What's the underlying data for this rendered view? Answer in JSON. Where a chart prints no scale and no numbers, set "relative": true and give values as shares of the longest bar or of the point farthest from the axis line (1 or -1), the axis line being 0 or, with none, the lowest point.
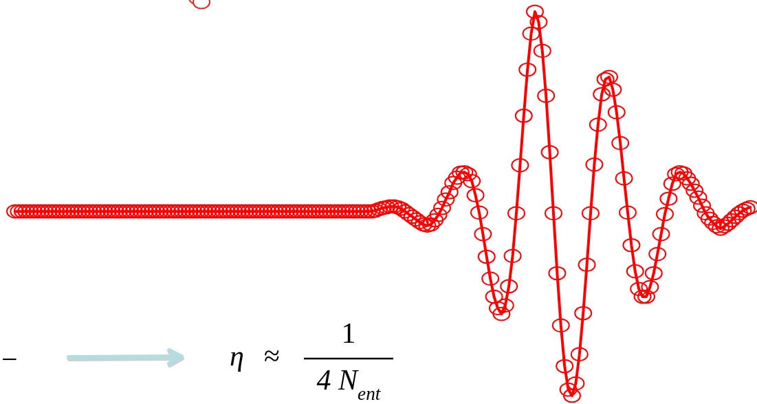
{
  "chart_data": {
    "type": "line",
    "relative": true,
    "marker": "circle",
    "line_style": "solid",
    "categories": [
      null,
      null,
      null,
      null,
      null,
      null,
      null,
      null,
      null,
      null,
      null,
      null,
      null,
      null,
      null,
      null,
      null,
      null,
      null,
      null,
      null,
      null,
      null,
      null,
      null,
      null,
      null,
      null,
      null,
      null,
      null,
      null,
      null,
      null,
      null,
      null,
      null,
      null,
      null,
      null,
      null,
      null,
      null,
      null,
      null,
      null,
      null,
      null,
      null,
      null,
      null,
      null,
      null,
      null,
      null,
      null,
      null,
      null,
      null,
      null,
      null,
      null,
      null,
      null,
      null,
      null,
      null,
      null,
      null,
      null,
      null,
      null,
      null,
      null,
      null,
      null,
      null,
      null,
      null,
      null,
      null,
      null,
      null,
      null,
      null,
      null,
      null,
      null,
      null,
      null,
      null,
      null,
      null,
      null,
      null,
      null,
      null,
      null,
      null,
      null,
      null,
      null,
      null,
      null,
      null,
      null,
      null,
      null,
      null,
      null,
      null,
      null,
      null,
      null,
      null,
      null,
      null,
      null,
      null,
      null,
      null,
      null,
      null,
      null,
      null,
      null,
      null,
      null,
      null,
      null,
      null,
      null,
      null,
      null,
      null,
      null,
      null,
      null,
      null,
      null,
      null,
      null,
      null,
      null,
      null,
      null,
      null,
      null,
      null,
      null,
      null,
      null,
      null,
      null,
      null,
      null,
      null,
      null,
      null,
      null,
      null,
      null,
      null,
      null,
      null,
      null,
      null,
      null,
      null,
      null,
      null,
      null,
      null,
      null,
      null,
      null,
      null,
      null,
      null,
      null,
      null,
      null,
      null,
      null,
      null,
      null,
      null,
      null,
      null,
      null,
      null,
      null,
      null,
      null,
      null,
      null,
      null,
      null,
      null
    ],
    "series": [
      {
        "color": "#ff0000",
        "values": [
          0.48,
          0.48,
          0.48,
          0.48,
          0.48,
          0.48,
          0.48,
          0.48,
          0.48,
          0.48,
          0.48,
          0.48,
          0.48,
          0.48,
          0.48,
          0.48,
          0.48,
          0.48,
          0.48,
          0.48,
          0.48,
          0.48,
          0.48,
          0.48,
          0.48,
          0.48,
          0.48,
          0.48,
          0.48,
          0.48,
          0.48,
          0.48,
          0.48,
          0.48,
          0.48,
          0.48,
          0.48,
          0.48,
          0.48,
          0.48,
          0.48,
          0.48,
          0.48,
          0.48,
          0.48,
          0.48,
          0.48,
          0.48,
          0.48,
          0.48,
          0.48,
          0.48,
          0.48,
          0.48,
          0.48,
          0.48,
          0.48,
          0.48,
          0.48,
          0.48,
          0.48,
          0.48,
          0.48,
          0.48,
          0.48,
          0.48,
          0.48,
          0.48,
          0.48,
          0.48,
          0.48,
          0.48,
          0.48,
          0.48,
          0.48,
          0.48,
          0.48,
          0.48,
          0.48,
          0.48,
          0.48,
          0.48,
          0.48,
          0.48,
          0.48,
          0.48,
          0.48,
          0.48,
          0.48,
          0.48,
          0.48,
          0.48,
          0.48,
          0.48,
          0.48,
          0.48,
          0.48,
          0.482,
          0.486,
          0.489,
          0.491,
          0.493,
          0.493,
          0.491,
          0.487,
          0.48,
          0.473,
          0.466,
          0.459,
          0.452,
          0.446,
          0.443,
          0.446,
          0.457,
          0.471,
          0.489,
          0.511,
          0.53,
          0.554,
          0.568,
          0.581,
          0.582,
          0.577,
          0.559,
          0.522,
          0.477,
          0.421,
          0.362,
          0.305,
          0.258,
          0.228,
          0.213,
          0.235,
          0.285,
          0.364,
          0.475,
          0.6,
          0.729,
          0.849,
          0.943,
          1,
          0.973,
          0.898,
          0.781,
          0.634,
          0.475,
          0.319,
          0.183,
          0.077,
          0.016,
          0,
          0.032,
          0.108,
          0.215,
          0.341,
          0.475,
          0.602,
          0.706,
          0.785,
          0.824,
          0.83,
          0.797,
          0.738,
          0.658,
          0.566,
          0.477,
          0.392,
          0.324,
          0.278,
          0.258,
          0.258,
          0.283,
          0.319,
          0.369,
          0.421,
          0.473,
          0.513,
          0.552,
          0.577,
          0.582,
          0.579,
          0.566,
          0.552,
          0.534,
          0.516,
          0.495,
          0.475,
          0.461,
          0.45,
          0.441,
          0.435,
          0.441,
          0.448,
          0.457,
          0.466,
          0.475,
          0.482,
          0.487,
          0.491
        ]
      }
    ],
    "annotations": [
      "−",
      "η ≈",
      "1",
      "4 N$_{ent}$"
    ]
  }
}
